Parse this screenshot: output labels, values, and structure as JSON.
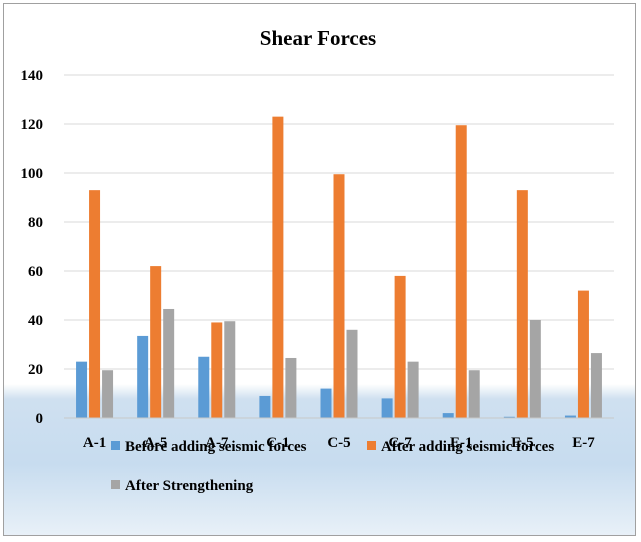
{
  "chart_data": {
    "type": "bar",
    "title": "Shear Forces",
    "xlabel": "",
    "ylabel": "",
    "ylim": [
      0,
      140
    ],
    "yticks": [
      0,
      20,
      40,
      60,
      80,
      100,
      120,
      140
    ],
    "grid": true,
    "legend_position": "bottom",
    "categories": [
      "A-1",
      "A-5",
      "A-7",
      "C-1",
      "C-5",
      "C-7",
      "E-1",
      "E-5",
      "E-7"
    ],
    "series": [
      {
        "name": "Before adding seismic forces",
        "color": "#5b9bd5",
        "values": [
          23,
          33.5,
          25,
          9,
          12,
          8,
          2,
          0.5,
          1
        ]
      },
      {
        "name": "After adding seismic forces",
        "color": "#ed7d31",
        "values": [
          93,
          62,
          39,
          123,
          99.5,
          58,
          119.5,
          93,
          52
        ]
      },
      {
        "name": "After Strengthening",
        "color": "#a5a5a5",
        "values": [
          19.5,
          44.5,
          39.5,
          24.5,
          36,
          23,
          19.5,
          40,
          26.5
        ]
      }
    ]
  }
}
